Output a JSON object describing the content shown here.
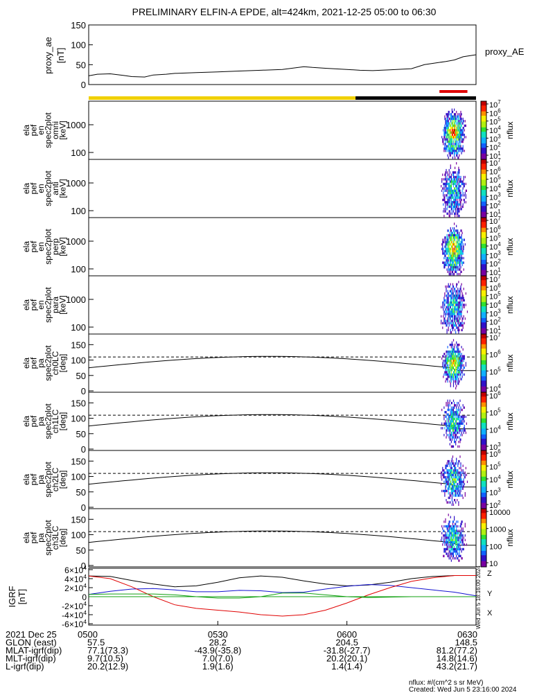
{
  "title": "PRELIMINARY ELFIN-A EPDE, alt=424km, 2021-12-25 05:00 to 06:30",
  "colors": {
    "yellow": "#f0d000",
    "black": "#000000",
    "red": "#e00000",
    "blue": "#1010d0",
    "green": "#10a010"
  },
  "chart_data": [
    {
      "type": "line",
      "panel": "proxy_ae",
      "ylabel": [
        "proxy_ae",
        "[nT]"
      ],
      "legend": "proxy_AE",
      "ylim": [
        0,
        150
      ],
      "yticks": [
        "0",
        "50",
        "100",
        "150"
      ],
      "x": [
        0,
        2,
        5,
        8,
        10,
        13,
        15,
        18,
        20,
        25,
        30,
        35,
        40,
        45,
        50,
        52,
        55,
        60,
        63,
        66,
        70,
        75,
        78,
        81,
        83,
        85,
        87,
        90
      ],
      "y": [
        22,
        26,
        27,
        23,
        20,
        19,
        24,
        26,
        28,
        30,
        32,
        34,
        36,
        38,
        45,
        43,
        41,
        38,
        36,
        35,
        37,
        40,
        50,
        55,
        58,
        62,
        70,
        75
      ]
    },
    {
      "type": "heatmap",
      "ylabel": [
        "ela",
        "pef",
        "en",
        "spec2plot",
        "omni",
        "[keV]"
      ],
      "zlabel": "nflux",
      "yticks": [
        "100",
        "1000"
      ],
      "cbar_ticks": [
        "10^1",
        "10^2",
        "10^3",
        "10^4",
        "10^5",
        "10^6",
        "10^7"
      ]
    },
    {
      "type": "heatmap",
      "ylabel": [
        "ela",
        "pef",
        "en",
        "spec2plot",
        "anti",
        "[keV]"
      ],
      "zlabel": "nflux",
      "yticks": [
        "100",
        "1000"
      ],
      "cbar_ticks": [
        "10^1",
        "10^2",
        "10^3",
        "10^4",
        "10^5",
        "10^6",
        "10^7"
      ]
    },
    {
      "type": "heatmap",
      "ylabel": [
        "ela",
        "pef",
        "en",
        "spec2plot",
        "perp",
        "[keV]"
      ],
      "zlabel": "nflux",
      "yticks": [
        "100",
        "1000"
      ],
      "cbar_ticks": [
        "10^1",
        "10^2",
        "10^3",
        "10^4",
        "10^5",
        "10^6",
        "10^7"
      ]
    },
    {
      "type": "heatmap",
      "ylabel": [
        "ela",
        "pef",
        "en",
        "spec2plot",
        "para",
        "[keV]"
      ],
      "zlabel": "nflux",
      "yticks": [
        "100",
        "1000"
      ],
      "cbar_ticks": [
        "10^1",
        "10^2",
        "10^3",
        "10^4",
        "10^5",
        "10^6",
        "10^7"
      ]
    },
    {
      "type": "heatmap",
      "ylabel": [
        "ela",
        "pef",
        "pa",
        "spec2plot",
        "ch0LC",
        "[deg]"
      ],
      "zlabel": "nflux",
      "yticks": [
        "0",
        "50",
        "100",
        "150"
      ],
      "cbar_ticks": [
        "10^4",
        "10^5",
        "10^6",
        "10^7"
      ]
    },
    {
      "type": "heatmap",
      "ylabel": [
        "ela",
        "pef",
        "pa",
        "spec2plot",
        "ch1LC",
        "[deg]"
      ],
      "zlabel": "nflux",
      "yticks": [
        "0",
        "50",
        "100",
        "150"
      ],
      "cbar_ticks": [
        "10^3",
        "10^4",
        "10^5",
        "10^6"
      ]
    },
    {
      "type": "heatmap",
      "ylabel": [
        "ela",
        "pef",
        "pa",
        "spec2plot",
        "ch2LC",
        "[deg]"
      ],
      "zlabel": "nflux",
      "yticks": [
        "0",
        "50",
        "100",
        "150"
      ],
      "cbar_ticks": [
        "10^2",
        "10^3",
        "10^4",
        "10^5",
        "10^6"
      ]
    },
    {
      "type": "heatmap",
      "ylabel": [
        "ela",
        "pef",
        "pa",
        "spec2plot",
        "ch3LC",
        "[deg]"
      ],
      "zlabel": "nflux",
      "yticks": [
        "0",
        "50",
        "100",
        "150"
      ],
      "cbar_ticks": [
        "10",
        "100",
        "1000",
        "10000"
      ]
    },
    {
      "type": "line",
      "panel": "igrf",
      "ylabel": [
        "IGRF",
        "[nT]"
      ],
      "legend": [
        "X",
        "Y",
        "Z"
      ],
      "yticks": [
        "-6×10^4",
        "-4×10^4",
        "-2×10^4",
        "0",
        "2×10^4",
        "4×10^4",
        "6×10^4"
      ],
      "ylim": [
        -60000,
        60000
      ],
      "x": [
        0,
        5,
        10,
        15,
        20,
        25,
        30,
        35,
        40,
        45,
        50,
        55,
        60,
        65,
        70,
        75,
        80,
        85,
        90
      ],
      "series": [
        {
          "name": "X",
          "values": [
            46000,
            45000,
            36000,
            28000,
            22000,
            24000,
            32000,
            42000,
            46000,
            43000,
            35000,
            28000,
            24000,
            26000,
            32000,
            40000,
            45000,
            47000,
            47000
          ]
        },
        {
          "name": "Y",
          "values": [
            5000,
            12000,
            17000,
            18000,
            15000,
            11000,
            11000,
            14000,
            13000,
            9000,
            10000,
            17000,
            23000,
            27000,
            25000,
            20000,
            15000,
            10000,
            2000
          ]
        },
        {
          "name": "Z",
          "values": [
            46000,
            40000,
            22000,
            0,
            -18000,
            -26000,
            -30000,
            -34000,
            -40000,
            -43000,
            -40000,
            -30000,
            -14000,
            4000,
            20000,
            34000,
            42000,
            47000,
            47000
          ]
        },
        {
          "name": "",
          "values": [
            5000,
            6000,
            6000,
            6000,
            4000,
            0,
            -3000,
            -3000,
            0,
            8000,
            8000,
            4000,
            0,
            -2000,
            -1000,
            0,
            0,
            0,
            0
          ]
        }
      ]
    }
  ],
  "time_axis": {
    "rows": [
      {
        "label": "2021 Dec 25",
        "values": [
          "0500",
          "0530",
          "0600",
          "0630"
        ]
      },
      {
        "label": "GLON (east)",
        "values": [
          "57.5",
          "28.2",
          "204.5",
          "148.5"
        ]
      },
      {
        "label": "MLAT-igrf(dip)",
        "values": [
          "77.1(73.3)",
          "-43.9(-35.8)",
          "-31.8(-27.7)",
          "81.2(77.2)"
        ]
      },
      {
        "label": "MLT-igrf(dip)",
        "values": [
          "9.7(10.5)",
          "7.0(7.0)",
          "20.2(20.1)",
          "14.8(14.6)"
        ]
      },
      {
        "label": "L-igrf(dip)",
        "values": [
          "20.2(12.9)",
          "1.9(1.6)",
          "1.4(1.4)",
          "43.2(21.7)"
        ]
      }
    ]
  },
  "footer": {
    "units": "nflux: #/(cm^2 s sr MeV)",
    "created": "Created: Wed Jun  5 23:16:00 2024",
    "side_stamp": "Wed Jun  5 18:16:00 2024"
  }
}
